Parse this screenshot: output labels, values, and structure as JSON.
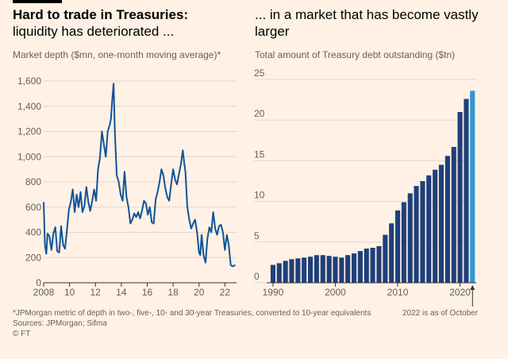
{
  "left": {
    "title_bold": "Hard to trade in Treasuries:",
    "title_rest": "liquidity has deteriorated ...",
    "subtitle": "Market depth ($mn, one-month moving average)*"
  },
  "right": {
    "title": "... in a market that has become vastly larger",
    "subtitle": "Total amount of Treasury debt outstanding ($tn)",
    "note": "2022 is as of October"
  },
  "footer": {
    "footnote": "*JPMorgan metric of depth in two-, five-, 10- and 30-year Treasuries, converted to 10-year equivalents",
    "sources": "Sources: JPMorgan; Sifma",
    "credit": "© FT"
  },
  "colors": {
    "line": "#0f5499",
    "bar": "#1f3f7a",
    "highlight": "#2e97d6",
    "grid": "#e3d6c8",
    "background": "#fff1e5"
  },
  "chart_data": [
    {
      "type": "line",
      "title": "Market depth ($mn, one-month moving average)*",
      "xlim": [
        2008,
        2022.9
      ],
      "ylim": [
        0,
        1600
      ],
      "x_ticks": [
        2008,
        2010,
        2012,
        2014,
        2016,
        2018,
        2020,
        2022
      ],
      "x_tick_labels": [
        "2008",
        "10",
        "12",
        "14",
        "16",
        "18",
        "20",
        "22"
      ],
      "y_ticks": [
        0,
        200,
        400,
        600,
        800,
        1000,
        1200,
        1400,
        1600
      ],
      "y_tick_labels": [
        "0",
        "200",
        "400",
        "600",
        "800",
        "1,000",
        "1,200",
        "1,400",
        "1,600"
      ],
      "series": [
        {
          "x": [
            2008.0,
            2008.1,
            2008.2,
            2008.3,
            2008.45,
            2008.6,
            2008.75,
            2008.9,
            2009.05,
            2009.2,
            2009.35,
            2009.5,
            2009.65,
            2009.8,
            2009.95,
            2010.1,
            2010.25,
            2010.4,
            2010.55,
            2010.7,
            2010.85,
            2011.0,
            2011.15,
            2011.3,
            2011.45,
            2011.6,
            2011.75,
            2011.9,
            2012.05,
            2012.2,
            2012.35,
            2012.5,
            2012.65,
            2012.8,
            2012.95,
            2013.1,
            2013.2,
            2013.3,
            2013.4,
            2013.5,
            2013.65,
            2013.8,
            2013.95,
            2014.1,
            2014.25,
            2014.4,
            2014.55,
            2014.7,
            2014.85,
            2015.0,
            2015.15,
            2015.3,
            2015.45,
            2015.6,
            2015.75,
            2015.9,
            2016.05,
            2016.2,
            2016.35,
            2016.5,
            2016.65,
            2016.8,
            2016.95,
            2017.1,
            2017.25,
            2017.4,
            2017.55,
            2017.7,
            2017.85,
            2018.0,
            2018.15,
            2018.3,
            2018.45,
            2018.6,
            2018.75,
            2018.85,
            2018.95,
            2019.1,
            2019.25,
            2019.4,
            2019.55,
            2019.7,
            2019.85,
            2020.0,
            2020.1,
            2020.2,
            2020.35,
            2020.5,
            2020.65,
            2020.8,
            2020.95,
            2021.1,
            2021.25,
            2021.4,
            2021.55,
            2021.7,
            2021.85,
            2022.0,
            2022.15,
            2022.3,
            2022.45,
            2022.6,
            2022.8
          ],
          "y": [
            640,
            300,
            230,
            390,
            370,
            260,
            390,
            440,
            250,
            240,
            450,
            300,
            270,
            420,
            580,
            640,
            740,
            560,
            700,
            600,
            720,
            560,
            610,
            760,
            640,
            570,
            650,
            740,
            650,
            900,
            990,
            1200,
            1100,
            1000,
            1200,
            1250,
            1300,
            1450,
            1580,
            1200,
            850,
            800,
            700,
            650,
            880,
            680,
            600,
            470,
            500,
            550,
            520,
            560,
            510,
            570,
            650,
            630,
            540,
            600,
            480,
            470,
            660,
            720,
            800,
            900,
            850,
            750,
            680,
            650,
            780,
            900,
            820,
            780,
            860,
            940,
            1050,
            960,
            880,
            600,
            500,
            430,
            470,
            500,
            400,
            240,
            220,
            380,
            220,
            160,
            350,
            440,
            400,
            560,
            430,
            380,
            450,
            460,
            400,
            260,
            380,
            300,
            140,
            130,
            140
          ]
        }
      ]
    },
    {
      "type": "bar",
      "title": "Total amount of Treasury debt outstanding ($tn)",
      "xlim": [
        1989.5,
        2022.6
      ],
      "ylim": [
        0,
        25
      ],
      "x_ticks": [
        1990,
        2000,
        2010,
        2020
      ],
      "y_ticks": [
        0,
        5,
        10,
        15,
        20,
        25
      ],
      "highlight": "2022",
      "categories": [
        "1990",
        "1991",
        "1992",
        "1993",
        "1994",
        "1995",
        "1996",
        "1997",
        "1998",
        "1999",
        "2000",
        "2001",
        "2002",
        "2003",
        "2004",
        "2005",
        "2006",
        "2007",
        "2008",
        "2009",
        "2010",
        "2011",
        "2012",
        "2013",
        "2014",
        "2015",
        "2016",
        "2017",
        "2018",
        "2019",
        "2020",
        "2021",
        "2022"
      ],
      "values": [
        2.2,
        2.4,
        2.7,
        2.9,
        3.0,
        3.1,
        3.2,
        3.4,
        3.4,
        3.3,
        3.2,
        3.1,
        3.4,
        3.6,
        3.9,
        4.2,
        4.3,
        4.5,
        5.9,
        7.3,
        8.9,
        9.9,
        11.0,
        11.9,
        12.5,
        13.2,
        13.9,
        14.5,
        15.6,
        16.7,
        21.0,
        22.6,
        23.6
      ]
    }
  ]
}
